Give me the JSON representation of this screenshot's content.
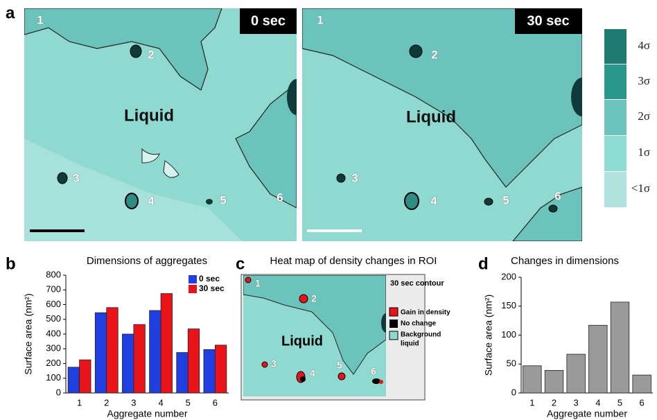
{
  "panel_labels": [
    "a",
    "b",
    "c",
    "d"
  ],
  "panel_a": {
    "images": [
      {
        "time": "0 sec",
        "region_label": "Liquid",
        "aggregates": [
          "1",
          "2",
          "3",
          "4",
          "5",
          "6"
        ]
      },
      {
        "time": "30 sec",
        "region_label": "Liquid",
        "aggregates": [
          "1",
          "2",
          "3",
          "4",
          "5",
          "6"
        ]
      }
    ],
    "colorbar": [
      "4σ",
      "3σ",
      "2σ",
      "1σ",
      "<1σ"
    ]
  },
  "panel_c": {
    "title": "Heat map of density changes in ROI",
    "region_label": "Liquid",
    "aggregates": [
      "1",
      "2",
      "3",
      "4",
      "5",
      "6"
    ],
    "legend_title": "30 sec contour",
    "legend": [
      "Gain in density",
      "No change",
      "Background",
      "liquid"
    ]
  },
  "chart_data": [
    {
      "type": "bar",
      "title": "Dimensions of aggregates",
      "x_label": "Aggregate number",
      "y_label": "Surface area (nm²)",
      "categories": [
        "1",
        "2",
        "3",
        "4",
        "5",
        "6"
      ],
      "series": [
        {
          "name": "0 sec",
          "color": "#1f3fe0",
          "values": [
            175,
            545,
            400,
            560,
            275,
            295
          ]
        },
        {
          "name": "30 sec",
          "color": "#e8141a",
          "values": [
            225,
            580,
            465,
            675,
            435,
            325
          ]
        }
      ],
      "ylim": [
        0,
        800
      ],
      "yticks": [
        0,
        100,
        200,
        300,
        400,
        500,
        600,
        700,
        800
      ],
      "legend": "upper right"
    },
    {
      "type": "bar",
      "title": "Changes in dimensions",
      "x_label": "Aggregate number",
      "y_label": "Surface area (nm²)",
      "categories": [
        "1",
        "2",
        "3",
        "4",
        "5",
        "6"
      ],
      "values": [
        47,
        39,
        67,
        117,
        157,
        31
      ],
      "color": "#9a9a9a",
      "ylim": [
        0,
        200
      ],
      "yticks": [
        0,
        50,
        100,
        150,
        200
      ]
    }
  ]
}
